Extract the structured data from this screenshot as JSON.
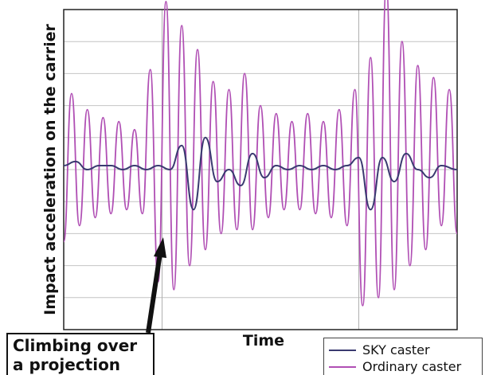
{
  "chart_data": {
    "type": "line",
    "title": "",
    "xlabel": "Time",
    "ylabel": "Impact acceleration on the carrier",
    "xlim": [
      0,
      100
    ],
    "ylim": [
      -4,
      4
    ],
    "grid": true,
    "legend_position": "bottom-right",
    "series": [
      {
        "name": "SKY caster",
        "color": "#3a3a70",
        "x": [
          0,
          3,
          6,
          9,
          12,
          15,
          18,
          21,
          24,
          27,
          30,
          33,
          36,
          39,
          42,
          45,
          48,
          51,
          54,
          57,
          60,
          63,
          66,
          69,
          72,
          75,
          78,
          81,
          84,
          87,
          90,
          93,
          96,
          100
        ],
        "y": [
          0.1,
          0.2,
          0.0,
          0.1,
          0.1,
          0.0,
          0.1,
          0.0,
          0.1,
          0.0,
          0.6,
          -1.0,
          0.8,
          -0.3,
          0.0,
          -0.4,
          0.4,
          -0.2,
          0.1,
          0.0,
          0.1,
          0.0,
          0.1,
          0.0,
          0.1,
          0.3,
          -1.0,
          0.3,
          -0.3,
          0.4,
          0.0,
          -0.2,
          0.1,
          0.0
        ]
      },
      {
        "name": "Ordinary caster",
        "color": "#b04fb4",
        "x": [
          0,
          2,
          4,
          6,
          8,
          10,
          12,
          14,
          16,
          18,
          20,
          22,
          24,
          26,
          28,
          30,
          32,
          34,
          36,
          38,
          40,
          42,
          44,
          46,
          48,
          50,
          52,
          54,
          56,
          58,
          60,
          62,
          64,
          66,
          68,
          70,
          72,
          74,
          76,
          78,
          80,
          82,
          84,
          86,
          88,
          90,
          92,
          94,
          96,
          98,
          100
        ],
        "y": [
          -1.8,
          1.9,
          -1.4,
          1.5,
          -1.2,
          1.3,
          -1.1,
          1.2,
          -1.0,
          1.0,
          -1.1,
          2.5,
          -2.8,
          4.2,
          -3.0,
          3.6,
          -2.4,
          3.0,
          -2.0,
          2.2,
          -1.6,
          2.0,
          -1.5,
          2.4,
          -1.5,
          1.6,
          -1.2,
          1.4,
          -1.0,
          1.2,
          -1.0,
          1.4,
          -1.1,
          1.2,
          -1.2,
          1.5,
          -1.4,
          2.0,
          -3.4,
          2.8,
          -3.2,
          4.6,
          -3.0,
          3.2,
          -2.4,
          2.6,
          -2.0,
          2.3,
          -1.4,
          2.0,
          -1.6
        ]
      }
    ],
    "annotations": [
      {
        "text_lines": [
          "Climbing over",
          "a projection"
        ],
        "target_x": 30
      }
    ]
  }
}
